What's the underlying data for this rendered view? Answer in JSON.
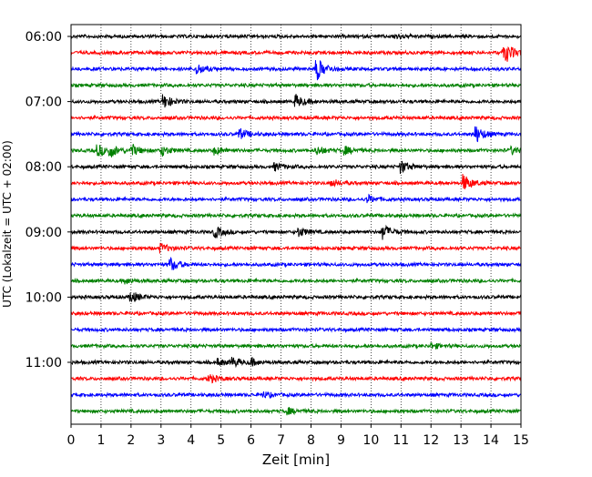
{
  "chart_data": {
    "type": "line",
    "title": "",
    "xlabel": "Zeit  [min]",
    "ylabel": "UTC (Lokalzeit = UTC + 02:00)",
    "xlim": [
      0,
      15
    ],
    "x_ticks": [
      0,
      1,
      2,
      3,
      4,
      5,
      6,
      7,
      8,
      9,
      10,
      11,
      12,
      13,
      14,
      15
    ],
    "y_tick_labels": [
      "06:00",
      "07:00",
      "08:00",
      "09:00",
      "10:00",
      "11:00"
    ],
    "y_tick_traces": [
      0,
      4,
      8,
      12,
      16,
      20
    ],
    "grid": true,
    "trace_colors": [
      "#000000",
      "#ff0000",
      "#0000ff",
      "#008000"
    ],
    "traces": [
      {
        "start": "06:00",
        "color": "#000000",
        "events": [
          [
            10.8,
            0.5
          ]
        ]
      },
      {
        "start": "06:15",
        "color": "#ff0000",
        "events": [
          [
            14.5,
            1.4
          ],
          [
            14.4,
            0.9
          ]
        ]
      },
      {
        "start": "06:30",
        "color": "#0000ff",
        "events": [
          [
            4.2,
            1.1
          ],
          [
            8.2,
            2.4
          ]
        ]
      },
      {
        "start": "06:45",
        "color": "#008000",
        "events": []
      },
      {
        "start": "07:00",
        "color": "#000000",
        "events": [
          [
            3.1,
            1.4
          ],
          [
            7.5,
            1.3
          ]
        ]
      },
      {
        "start": "07:15",
        "color": "#ff0000",
        "events": []
      },
      {
        "start": "07:30",
        "color": "#0000ff",
        "events": [
          [
            5.6,
            1.2
          ],
          [
            13.5,
            1.8
          ]
        ]
      },
      {
        "start": "07:45",
        "color": "#008000",
        "events": [
          [
            0.9,
            1.2
          ],
          [
            1.3,
            1.3
          ],
          [
            2.0,
            1.3
          ],
          [
            3.0,
            1.2
          ],
          [
            4.8,
            0.8
          ],
          [
            8.2,
            0.9
          ],
          [
            9.1,
            0.9
          ],
          [
            14.7,
            0.7
          ]
        ]
      },
      {
        "start": "08:00",
        "color": "#000000",
        "events": [
          [
            11.0,
            1.3
          ],
          [
            6.8,
            0.8
          ]
        ]
      },
      {
        "start": "08:15",
        "color": "#ff0000",
        "events": [
          [
            13.1,
            1.7
          ],
          [
            8.7,
            0.7
          ]
        ]
      },
      {
        "start": "08:30",
        "color": "#0000ff",
        "events": [
          [
            9.9,
            0.8
          ]
        ]
      },
      {
        "start": "08:45",
        "color": "#008000",
        "events": []
      },
      {
        "start": "09:00",
        "color": "#000000",
        "events": [
          [
            10.4,
            1.6
          ],
          [
            4.8,
            1.2
          ],
          [
            7.6,
            0.9
          ]
        ]
      },
      {
        "start": "09:15",
        "color": "#ff0000",
        "events": [
          [
            3.0,
            0.9
          ]
        ]
      },
      {
        "start": "09:30",
        "color": "#0000ff",
        "events": [
          [
            3.3,
            1.5
          ]
        ]
      },
      {
        "start": "09:45",
        "color": "#008000",
        "events": [
          [
            1.8,
            0.6
          ]
        ]
      },
      {
        "start": "10:00",
        "color": "#000000",
        "events": [
          [
            2.0,
            1.2
          ]
        ]
      },
      {
        "start": "10:15",
        "color": "#ff0000",
        "events": []
      },
      {
        "start": "10:30",
        "color": "#0000ff",
        "events": []
      },
      {
        "start": "10:45",
        "color": "#008000",
        "events": [
          [
            12.0,
            0.6
          ]
        ]
      },
      {
        "start": "11:00",
        "color": "#000000",
        "events": [
          [
            5.4,
            0.9
          ],
          [
            6.0,
            0.7
          ],
          [
            4.9,
            0.7
          ]
        ]
      },
      {
        "start": "11:15",
        "color": "#ff0000",
        "events": [
          [
            4.6,
            0.9
          ]
        ]
      },
      {
        "start": "11:30",
        "color": "#0000ff",
        "events": [
          [
            6.4,
            0.6
          ]
        ]
      },
      {
        "start": "11:45",
        "color": "#008000",
        "events": [
          [
            7.2,
            0.7
          ]
        ]
      }
    ]
  }
}
